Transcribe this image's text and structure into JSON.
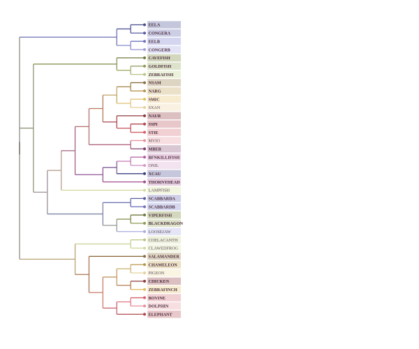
{
  "tree": {
    "leaves": [
      {
        "name": "EELA",
        "color": "#4a4e8c",
        "bg": "#c4c7dc"
      },
      {
        "name": "CONGERA",
        "color": "#5a5ea0",
        "bg": "#ccceE6"
      },
      {
        "name": "EELB",
        "color": "#6f74bc",
        "bg": "#d4d6ef"
      },
      {
        "name": "CONGERB",
        "color": "#9d9fd8",
        "bg": "#e2e3f6"
      },
      {
        "name": "CAVEFISH",
        "color": "#6f7a3e",
        "bg": "#d2d7bd"
      },
      {
        "name": "GOLDFISH",
        "color": "#8e9a58",
        "bg": "#dde2cb"
      },
      {
        "name": "ZEBRAFISH",
        "color": "#b8c584",
        "bg": "#ecf1dc"
      },
      {
        "name": "NSAM",
        "color": "#8c6e42",
        "bg": "#ded4c2"
      },
      {
        "name": "NARG",
        "color": "#b8984e",
        "bg": "#ebe1c8"
      },
      {
        "name": "SMIC",
        "color": "#e2bc63",
        "bg": "#f7ecd0"
      },
      {
        "name": "SXAN",
        "color": "#e6cf9c",
        "bg": "#f9f2e2"
      },
      {
        "name": "NAUR",
        "color": "#8e3a3e",
        "bg": "#dcc0c1"
      },
      {
        "name": "SSPI",
        "color": "#b2484f",
        "bg": "#e7c7c9"
      },
      {
        "name": "STIE",
        "color": "#d6606a",
        "bg": "#f1d0d3"
      },
      {
        "name": "MVIO",
        "color": "#e8909a",
        "bg": "#f7dfe1"
      },
      {
        "name": "MBER",
        "color": "#7c3d69",
        "bg": "#dac7d4"
      },
      {
        "name": "BFNKILLIFISH",
        "color": "#b35ca4",
        "bg": "#ebd3e6"
      },
      {
        "name": "ONIL",
        "color": "#d498c8",
        "bg": "#f3e2ef"
      },
      {
        "name": "XCAU",
        "color": "#3a3f7c",
        "bg": "#c6c7dc"
      },
      {
        "name": "THORNYHEAD",
        "color": "#a14d8e",
        "bg": "#e6cfe0"
      },
      {
        "name": "LAMPFISH",
        "color": "#d2db9c",
        "bg": "#f2f5e0"
      },
      {
        "name": "SCABBARDA",
        "color": "#5a5ea0",
        "bg": "#cfd0e7"
      },
      {
        "name": "SCABBARDB",
        "color": "#7074be",
        "bg": "#d5d7ef"
      },
      {
        "name": "VIPERFISH",
        "color": "#6e7a3c",
        "bg": "#d3d8bc"
      },
      {
        "name": "BLACKDRAGON",
        "color": "#8d9a56",
        "bg": "#dde2ca"
      },
      {
        "name": "LOOSEJAW",
        "color": "#a9acde",
        "bg": "#e4e5f7"
      },
      {
        "name": "COELACANTH",
        "color": "#b9c585",
        "bg": "#edf1dd"
      },
      {
        "name": "CLAWEDFROG",
        "color": "#d2da9e",
        "bg": "#f3f6e3"
      },
      {
        "name": "SALAMANDER",
        "color": "#8c6c3f",
        "bg": "#dfd5c3"
      },
      {
        "name": "CHAMELEON",
        "color": "#b8974d",
        "bg": "#ebe1c7"
      },
      {
        "name": "PIGEON",
        "color": "#e4d29e",
        "bg": "#faf4e3"
      },
      {
        "name": "CHICKEN",
        "color": "#8c3a3d",
        "bg": "#dcc0c1"
      },
      {
        "name": "ZEBRAFINCH",
        "color": "#e2bc63",
        "bg": "#f7ecd0"
      },
      {
        "name": "BOVINE",
        "color": "#d6606a",
        "bg": "#f1d0d3"
      },
      {
        "name": "DOLPHIN",
        "color": "#e8909a",
        "bg": "#f7dfe1"
      },
      {
        "name": "ELEPHANT",
        "color": "#b2484f",
        "bg": "#e8c8ca"
      }
    ],
    "light_labels": [
      "SXAN",
      "MVIO",
      "ONIL",
      "LAMPFISH",
      "LOOSEJAW",
      "COELACANTH",
      "CLAWEDFROG",
      "PIGEON"
    ],
    "topology": [
      [
        [
          [
            [
              "EELA",
              "CONGERA"
            ],
            [
              "EELB",
              "CONGERB"
            ]
          ]
        ]
      ],
      [
        [
          [
            "CAVEFISH"
          ],
          [
            "GOLDFISH",
            "ZEBRAFISH"
          ]
        ],
        [
          [
            [
              [
                [
                  [
                    [
                      "NSAM",
                      "NARG"
                    ],
                    [
                      "SMIC",
                      "SXAN"
                    ]
                  ],
                  [
                    "NAUR",
                    [
                      "SSPI",
                      "STIE"
                    ]
                  ]
                ],
                [
                  "MVIO",
                  "MBER"
                ]
              ],
              [
                [
                  [
                    "BFNKILLIFISH",
                    "ONIL"
                  ],
                  "XCAU"
                ],
                "THORNYHEAD"
              ]
            ],
            "LAMPFISH"
          ],
          [
            [
              "SCABBARDA",
              "SCABBARDB"
            ],
            [
              [
                "VIPERFISH",
                "BLACKDRAGON"
              ],
              "LOOSEJAW"
            ]
          ]
        ]
      ],
      [
        [
          "COELACANTH",
          "CLAWEDFROG"
        ],
        [
          "SALAMANDER",
          [
            [
              [
                "CHAMELEON",
                "PIGEON"
              ],
              [
                "CHICKEN",
                "ZEBRAFINCH"
              ]
            ],
            [
              [
                "BOVINE",
                "DOLPHIN"
              ],
              "ELEPHANT"
            ]
          ]
        ]
      ]
    ]
  }
}
